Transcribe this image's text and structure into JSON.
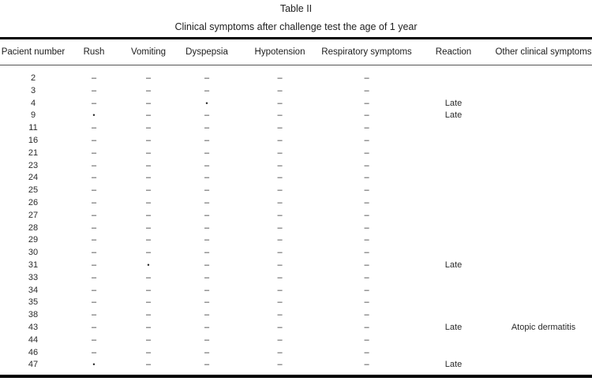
{
  "page": {
    "title": "Table II",
    "subtitle": "Clinical symptoms after challenge test the age of 1 year"
  },
  "table": {
    "columns": [
      "Pacient number",
      "Rush",
      "Vomiting",
      "Dyspepsia",
      "Hypotension",
      "Respiratory symptoms",
      "Reaction",
      "Other clinical symptoms"
    ],
    "column_keys": [
      "patient-number",
      "rush",
      "vomiting",
      "dyspepsia",
      "hypotension",
      "respiratory-symptoms",
      "reaction",
      "other-clinical-symptoms"
    ],
    "symbols": {
      "negative": "–",
      "positive": "•"
    },
    "rows": [
      [
        "2",
        "–",
        "–",
        "–",
        "–",
        "–",
        "",
        ""
      ],
      [
        "3",
        "–",
        "–",
        "–",
        "–",
        "–",
        "",
        ""
      ],
      [
        "4",
        "–",
        "–",
        "•",
        "–",
        "–",
        "Late",
        ""
      ],
      [
        "9",
        "•",
        "–",
        "–",
        "–",
        "–",
        "Late",
        ""
      ],
      [
        "11",
        "–",
        "–",
        "–",
        "–",
        "–",
        "",
        ""
      ],
      [
        "16",
        "–",
        "–",
        "–",
        "–",
        "–",
        "",
        ""
      ],
      [
        "21",
        "–",
        "–",
        "–",
        "–",
        "–",
        "",
        ""
      ],
      [
        "23",
        "–",
        "–",
        "–",
        "–",
        "–",
        "",
        ""
      ],
      [
        "24",
        "–",
        "–",
        "–",
        "–",
        "–",
        "",
        ""
      ],
      [
        "25",
        "–",
        "–",
        "–",
        "–",
        "–",
        "",
        ""
      ],
      [
        "26",
        "–",
        "–",
        "–",
        "–",
        "–",
        "",
        ""
      ],
      [
        "27",
        "–",
        "–",
        "–",
        "–",
        "–",
        "",
        ""
      ],
      [
        "28",
        "–",
        "–",
        "–",
        "–",
        "–",
        "",
        ""
      ],
      [
        "29",
        "–",
        "–",
        "–",
        "–",
        "–",
        "",
        ""
      ],
      [
        "30",
        "–",
        "–",
        "–",
        "–",
        "–",
        "",
        ""
      ],
      [
        "31",
        "–",
        "•",
        "–",
        "–",
        "–",
        "Late",
        ""
      ],
      [
        "33",
        "–",
        "–",
        "–",
        "–",
        "–",
        "",
        ""
      ],
      [
        "34",
        "–",
        "–",
        "–",
        "–",
        "–",
        "",
        ""
      ],
      [
        "35",
        "–",
        "–",
        "–",
        "–",
        "–",
        "",
        ""
      ],
      [
        "38",
        "–",
        "–",
        "–",
        "–",
        "–",
        "",
        ""
      ],
      [
        "43",
        "–",
        "–",
        "–",
        "–",
        "–",
        "Late",
        "Atopic dermatitis"
      ],
      [
        "44",
        "–",
        "–",
        "–",
        "–",
        "–",
        "",
        ""
      ],
      [
        "46",
        "–",
        "–",
        "–",
        "–",
        "–",
        "",
        ""
      ],
      [
        "47",
        "•",
        "–",
        "–",
        "–",
        "–",
        "Late",
        ""
      ]
    ]
  },
  "colors": {
    "text": "#1c1c1c",
    "rule": "#000000",
    "background": "#ffffff"
  }
}
